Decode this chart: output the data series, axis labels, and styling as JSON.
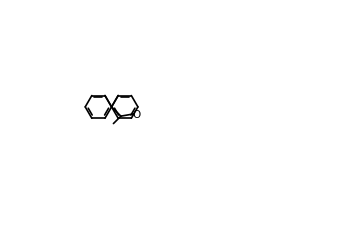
{
  "bg": "#ffffff",
  "lw": 1.2,
  "lw2": 0.8,
  "fontsize": 7.5,
  "figw": 3.47,
  "figh": 2.51
}
